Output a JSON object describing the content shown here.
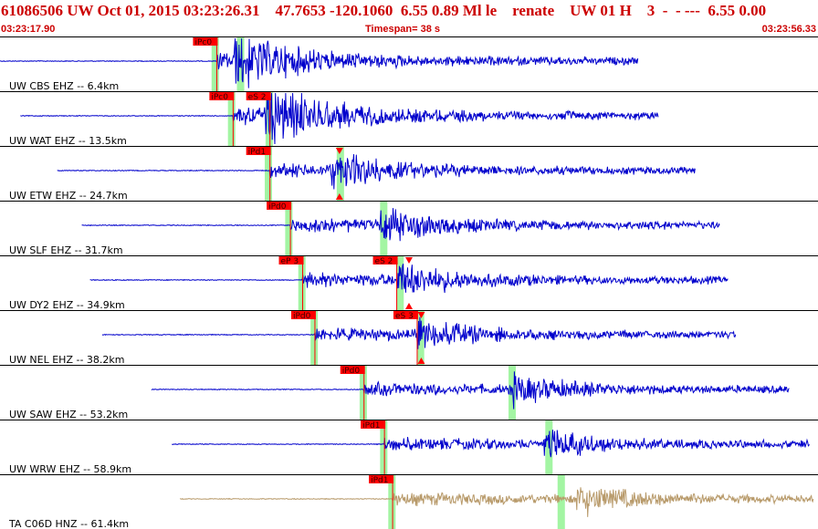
{
  "header": {
    "title": "61086506 UW Oct 01, 2015 03:23:26.31    47.7653 -120.1060  6.55 0.89 Ml le    renate    UW 01 H    3  -  - ---  6.55 0.00",
    "start_time": "03:23:17.90",
    "timespan": "Timespan=  38 s",
    "end_time": "03:23:56.33"
  },
  "colors": {
    "trace": "#0000cc",
    "trace_alt": "#b89a6a",
    "pick": "#ff0000",
    "window": "#66ee66",
    "title": "#cc0000"
  },
  "channels": [
    {
      "label": "UW CBS EHZ -- 6.4km",
      "color": "blue",
      "start": 0.0,
      "end": 0.78,
      "amp": 0.9,
      "picks": [
        {
          "label": "iPc0",
          "t": 0.265
        }
      ],
      "windows": [
        0.262,
        0.293
      ],
      "burst": 0.29
    },
    {
      "label": "UW WAT EHZ -- 13.5km",
      "color": "blue",
      "start": 0.025,
      "end": 0.805,
      "amp": 1.0,
      "picks": [
        {
          "label": "iPc0",
          "t": 0.285
        },
        {
          "label": "eS 2",
          "t": 0.33
        }
      ],
      "windows": [
        0.282,
        0.328
      ],
      "burst": 0.33
    },
    {
      "label": "UW ETW EHZ -- 24.7km",
      "color": "blue",
      "start": 0.07,
      "end": 0.85,
      "amp": 0.6,
      "picks": [
        {
          "label": "iPd1",
          "t": 0.33
        }
      ],
      "windows": [
        0.327,
        0.415
      ],
      "burst": 0.41,
      "triangle": 0.415
    },
    {
      "label": "UW SLF EHZ -- 31.7km",
      "color": "blue",
      "start": 0.1,
      "end": 0.88,
      "amp": 0.6,
      "picks": [
        {
          "label": "iPd0",
          "t": 0.355
        }
      ],
      "windows": [
        0.352,
        0.468
      ],
      "burst": 0.47
    },
    {
      "label": "UW DY2 EHZ -- 34.9km",
      "color": "blue",
      "start": 0.11,
      "end": 0.89,
      "amp": 0.6,
      "picks": [
        {
          "label": "eP 3",
          "t": 0.37
        },
        {
          "label": "eS 2",
          "t": 0.485
        }
      ],
      "windows": [
        0.368,
        0.488
      ],
      "burst": 0.49,
      "triangle": 0.5
    },
    {
      "label": "UW NEL EHZ -- 38.2km",
      "color": "blue",
      "start": 0.125,
      "end": 0.9,
      "amp": 0.5,
      "picks": [
        {
          "label": "iPd0",
          "t": 0.385
        },
        {
          "label": "eS 3",
          "t": 0.51
        }
      ],
      "windows": [
        0.383,
        0.513
      ],
      "burst": 0.515,
      "triangle": 0.515
    },
    {
      "label": "UW SAW EHZ -- 53.2km",
      "color": "blue",
      "start": 0.185,
      "end": 0.965,
      "amp": 0.5,
      "picks": [
        {
          "label": "iPd0",
          "t": 0.445
        }
      ],
      "windows": [
        0.443,
        0.625
      ],
      "burst": 0.63
    },
    {
      "label": "UW WRW EHZ -- 58.9km",
      "color": "blue",
      "start": 0.21,
      "end": 0.99,
      "amp": 0.5,
      "picks": [
        {
          "label": "iPd1",
          "t": 0.47
        }
      ],
      "windows": [
        0.468,
        0.67
      ],
      "burst": 0.67
    },
    {
      "label": "TA C06D HNZ -- 61.4km",
      "color": "tan",
      "start": 0.22,
      "end": 0.995,
      "amp": 0.55,
      "picks": [
        {
          "label": "iPd1",
          "t": 0.48
        }
      ],
      "windows": [
        0.478,
        0.685
      ],
      "burst": 0.71
    }
  ]
}
